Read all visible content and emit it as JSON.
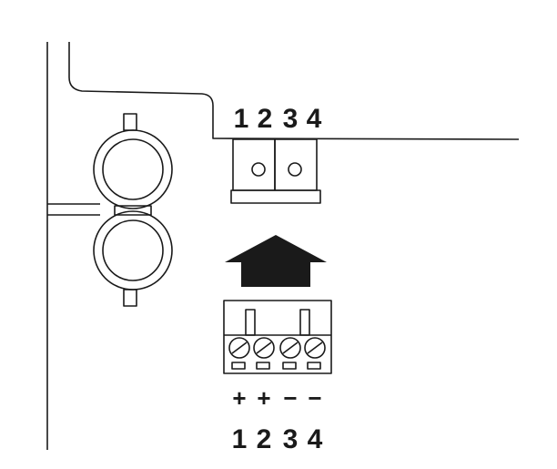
{
  "header_pins": [
    "1",
    "2",
    "3",
    "4"
  ],
  "terminal": {
    "polarity": [
      "+",
      "+",
      "−",
      "−"
    ],
    "pins": [
      "1",
      "2",
      "3",
      "4"
    ]
  },
  "colors": {
    "ink": "#1a1a1a",
    "background": "#ffffff"
  },
  "icons": [
    "bnc-connector-icon",
    "insert-arrow-icon",
    "screw-terminal-icon"
  ]
}
